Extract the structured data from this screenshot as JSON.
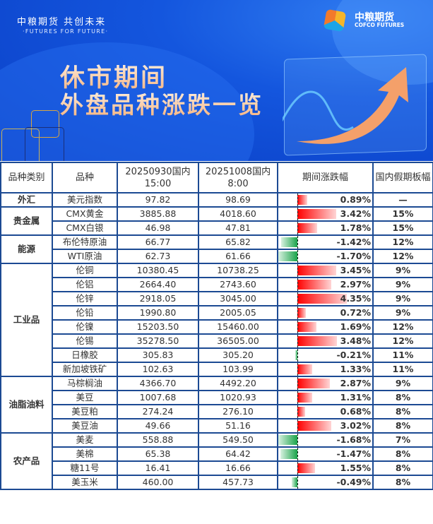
{
  "banner": {
    "slogan": "中粮期货  共创未来",
    "slogan_en": "·FUTURES FOR FUTURE·",
    "logo_cn": "中粮期货",
    "logo_en": "COFCO FUTURES",
    "title_line1": "休市期间",
    "title_line2": "外盘品种涨跌一览"
  },
  "colors": {
    "up": "#ff0000",
    "down": "#1aa34a",
    "border": "#1c4a93"
  },
  "table": {
    "headers": [
      "品种类别",
      "品种",
      "20250930国内15:00",
      "20251008国内8:00",
      "期间涨跌幅",
      "国内假期板幅"
    ],
    "groups": [
      {
        "category": "外汇",
        "rows": [
          {
            "name": "美元指数",
            "p1": "97.82",
            "p2": "98.69",
            "change": "0.89%",
            "pct": 0.89,
            "limit": "—"
          }
        ]
      },
      {
        "category": "贵金属",
        "rows": [
          {
            "name": "CMX黄金",
            "p1": "3885.88",
            "p2": "4018.60",
            "change": "3.42%",
            "pct": 3.42,
            "limit": "15%"
          },
          {
            "name": "CMX白银",
            "p1": "46.98",
            "p2": "47.81",
            "change": "1.78%",
            "pct": 1.78,
            "limit": "15%"
          }
        ]
      },
      {
        "category": "能源",
        "rows": [
          {
            "name": "布伦特原油",
            "p1": "66.77",
            "p2": "65.82",
            "change": "-1.42%",
            "pct": -1.42,
            "limit": "12%"
          },
          {
            "name": "WTI原油",
            "p1": "62.73",
            "p2": "61.66",
            "change": "-1.70%",
            "pct": -1.7,
            "limit": "12%"
          }
        ]
      },
      {
        "category": "工业品",
        "rows": [
          {
            "name": "伦铜",
            "p1": "10380.45",
            "p2": "10738.25",
            "change": "3.45%",
            "pct": 3.45,
            "limit": "9%"
          },
          {
            "name": "伦铝",
            "p1": "2664.40",
            "p2": "2743.60",
            "change": "2.97%",
            "pct": 2.97,
            "limit": "9%"
          },
          {
            "name": "伦锌",
            "p1": "2918.05",
            "p2": "3045.00",
            "change": "4.35%",
            "pct": 4.35,
            "limit": "9%"
          },
          {
            "name": "伦铅",
            "p1": "1990.80",
            "p2": "2005.05",
            "change": "0.72%",
            "pct": 0.72,
            "limit": "9%"
          },
          {
            "name": "伦镍",
            "p1": "15203.50",
            "p2": "15460.00",
            "change": "1.69%",
            "pct": 1.69,
            "limit": "12%"
          },
          {
            "name": "伦锡",
            "p1": "35278.50",
            "p2": "36505.00",
            "change": "3.48%",
            "pct": 3.48,
            "limit": "12%"
          },
          {
            "name": "日橡胶",
            "p1": "305.83",
            "p2": "305.20",
            "change": "-0.21%",
            "pct": -0.21,
            "limit": "11%"
          },
          {
            "name": "新加坡铁矿",
            "p1": "102.63",
            "p2": "103.99",
            "change": "1.33%",
            "pct": 1.33,
            "limit": "11%"
          }
        ]
      },
      {
        "category": "油脂油料",
        "rows": [
          {
            "name": "马棕榈油",
            "p1": "4366.70",
            "p2": "4492.20",
            "change": "2.87%",
            "pct": 2.87,
            "limit": "9%"
          },
          {
            "name": "美豆",
            "p1": "1007.68",
            "p2": "1020.93",
            "change": "1.31%",
            "pct": 1.31,
            "limit": "8%"
          },
          {
            "name": "美豆粕",
            "p1": "274.24",
            "p2": "276.10",
            "change": "0.68%",
            "pct": 0.68,
            "limit": "8%"
          },
          {
            "name": "美豆油",
            "p1": "49.66",
            "p2": "51.16",
            "change": "3.02%",
            "pct": 3.02,
            "limit": "8%"
          }
        ]
      },
      {
        "category": "农产品",
        "rows": [
          {
            "name": "美麦",
            "p1": "558.88",
            "p2": "549.50",
            "change": "-1.68%",
            "pct": -1.68,
            "limit": "7%"
          },
          {
            "name": "美棉",
            "p1": "65.38",
            "p2": "64.42",
            "change": "-1.47%",
            "pct": -1.47,
            "limit": "8%"
          },
          {
            "name": "糖11号",
            "p1": "16.41",
            "p2": "16.66",
            "change": "1.55%",
            "pct": 1.55,
            "limit": "8%"
          },
          {
            "name": "美玉米",
            "p1": "460.00",
            "p2": "457.73",
            "change": "-0.49%",
            "pct": -0.49,
            "limit": "8%"
          }
        ]
      }
    ]
  }
}
